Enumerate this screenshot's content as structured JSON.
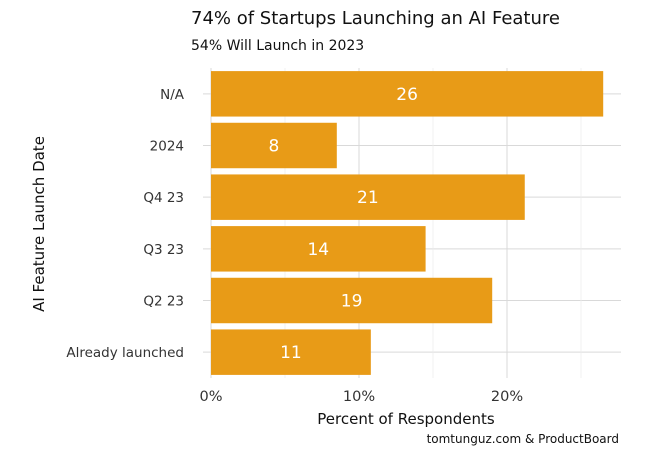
{
  "chart_data": {
    "type": "bar",
    "orientation": "horizontal",
    "title": "74% of Startups Launching an AI Feature",
    "subtitle": "54% Will Launch in 2023",
    "xlabel": "Percent of Respondents",
    "ylabel": "AI Feature Launch Date",
    "caption": "tomtunguz.com & ProductBoard",
    "categories": [
      "N/A",
      "2024",
      "Q4 23",
      "Q3 23",
      "Q2 23",
      "Already launched"
    ],
    "values": [
      26,
      8,
      21,
      14,
      19,
      11
    ],
    "percent_values": [
      26.5,
      8.5,
      21.2,
      14.5,
      19.0,
      10.8
    ],
    "data_labels": [
      "26",
      "8",
      "21",
      "14",
      "19",
      "11"
    ],
    "x_ticks": [
      0,
      10,
      20
    ],
    "x_tick_labels": [
      "0%",
      "10%",
      "20%"
    ],
    "xlim": [
      0,
      27.5
    ],
    "grid": true,
    "legend": "none",
    "bar_color": "#E89B17",
    "label_color": "#ffffff",
    "grid_color": "#d9d9d9"
  }
}
